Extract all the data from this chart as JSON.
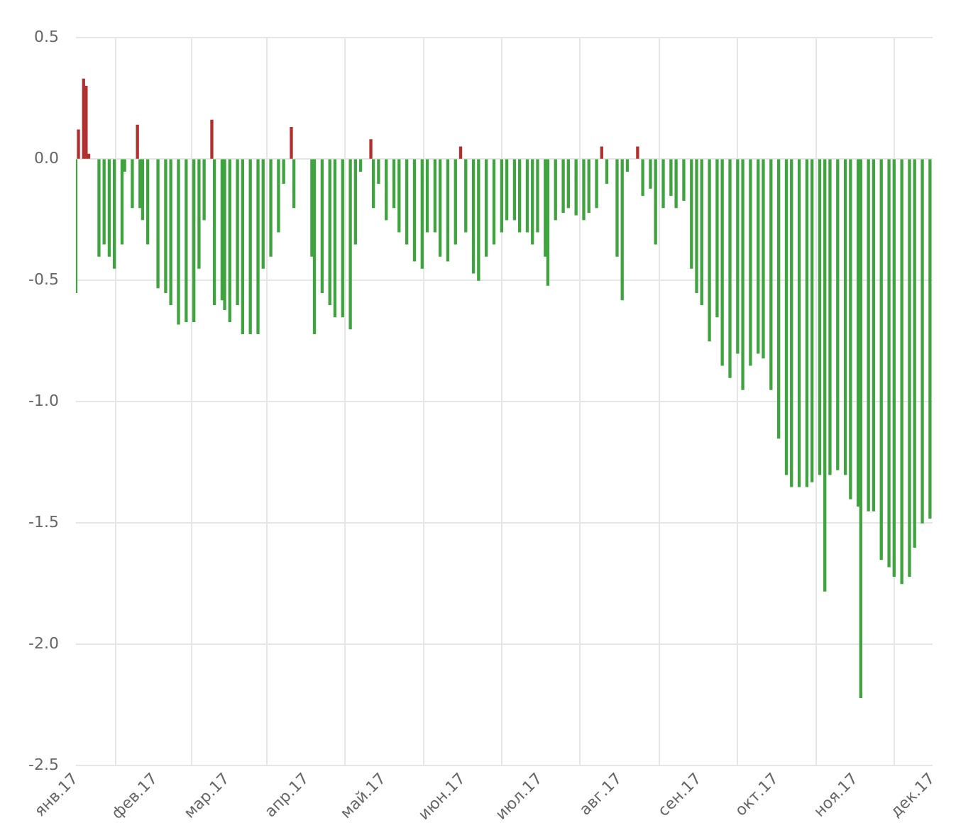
{
  "chart_data": {
    "type": "bar",
    "x": [
      "2017-01-01",
      "2017-01-02",
      "2017-01-04",
      "2017-01-05",
      "2017-01-06",
      "2017-01-10",
      "2017-01-12",
      "2017-01-14",
      "2017-01-16",
      "2017-01-19",
      "2017-01-20",
      "2017-01-23",
      "2017-01-25",
      "2017-01-26",
      "2017-01-27",
      "2017-01-29",
      "2017-02-02",
      "2017-02-05",
      "2017-02-07",
      "2017-02-10",
      "2017-02-13",
      "2017-02-16",
      "2017-02-18",
      "2017-02-20",
      "2017-02-23",
      "2017-02-24",
      "2017-02-27",
      "2017-02-28",
      "2017-03-02",
      "2017-03-05",
      "2017-03-07",
      "2017-03-10",
      "2017-03-13",
      "2017-03-15",
      "2017-03-18",
      "2017-03-21",
      "2017-03-23",
      "2017-03-26",
      "2017-03-27",
      "2017-04-03",
      "2017-04-04",
      "2017-04-07",
      "2017-04-10",
      "2017-04-12",
      "2017-04-15",
      "2017-04-18",
      "2017-04-20",
      "2017-04-22",
      "2017-04-26",
      "2017-04-27",
      "2017-04-29",
      "2017-05-02",
      "2017-05-05",
      "2017-05-07",
      "2017-05-10",
      "2017-05-13",
      "2017-05-16",
      "2017-05-18",
      "2017-05-21",
      "2017-05-23",
      "2017-05-26",
      "2017-05-29",
      "2017-05-31",
      "2017-06-02",
      "2017-06-05",
      "2017-06-07",
      "2017-06-10",
      "2017-06-13",
      "2017-06-16",
      "2017-06-18",
      "2017-06-21",
      "2017-06-23",
      "2017-06-26",
      "2017-06-28",
      "2017-06-30",
      "2017-07-03",
      "2017-07-04",
      "2017-07-07",
      "2017-07-10",
      "2017-07-12",
      "2017-07-15",
      "2017-07-18",
      "2017-07-20",
      "2017-07-23",
      "2017-07-25",
      "2017-07-27",
      "2017-07-31",
      "2017-08-02",
      "2017-08-04",
      "2017-08-08",
      "2017-08-10",
      "2017-08-13",
      "2017-08-15",
      "2017-08-18",
      "2017-08-21",
      "2017-08-23",
      "2017-08-26",
      "2017-08-29",
      "2017-08-31",
      "2017-09-02",
      "2017-09-05",
      "2017-09-08",
      "2017-09-10",
      "2017-09-13",
      "2017-09-16",
      "2017-09-18",
      "2017-09-21",
      "2017-09-24",
      "2017-09-26",
      "2017-09-29",
      "2017-10-02",
      "2017-10-05",
      "2017-10-07",
      "2017-10-10",
      "2017-10-13",
      "2017-10-15",
      "2017-10-18",
      "2017-10-20",
      "2017-10-22",
      "2017-10-25",
      "2017-10-28",
      "2017-10-30",
      "2017-11-02",
      "2017-11-03",
      "2017-11-06",
      "2017-11-08",
      "2017-11-11",
      "2017-11-14",
      "2017-11-16",
      "2017-11-19",
      "2017-11-22",
      "2017-11-24",
      "2017-11-27",
      "2017-11-30"
    ],
    "values": [
      -0.55,
      0.12,
      0.33,
      0.3,
      0.02,
      -0.4,
      -0.35,
      -0.4,
      -0.45,
      -0.35,
      -0.05,
      -0.2,
      0.14,
      -0.2,
      -0.25,
      -0.35,
      -0.53,
      -0.55,
      -0.6,
      -0.68,
      -0.67,
      -0.67,
      -0.45,
      -0.25,
      0.16,
      -0.6,
      -0.58,
      -0.62,
      -0.67,
      -0.6,
      -0.72,
      -0.72,
      -0.72,
      -0.45,
      -0.4,
      -0.3,
      -0.1,
      0.13,
      -0.2,
      -0.4,
      -0.72,
      -0.55,
      -0.6,
      -0.65,
      -0.65,
      -0.7,
      -0.35,
      -0.05,
      0.08,
      -0.2,
      -0.1,
      -0.25,
      -0.2,
      -0.3,
      -0.35,
      -0.42,
      -0.45,
      -0.3,
      -0.3,
      -0.4,
      -0.42,
      -0.35,
      0.05,
      -0.3,
      -0.47,
      -0.5,
      -0.4,
      -0.35,
      -0.3,
      -0.25,
      -0.25,
      -0.3,
      -0.3,
      -0.35,
      -0.3,
      -0.4,
      -0.52,
      -0.25,
      -0.22,
      -0.2,
      -0.23,
      -0.25,
      -0.22,
      -0.2,
      0.05,
      -0.1,
      -0.4,
      -0.58,
      -0.05,
      0.05,
      -0.15,
      -0.12,
      -0.35,
      -0.2,
      -0.15,
      -0.2,
      -0.17,
      -0.45,
      -0.55,
      -0.6,
      -0.75,
      -0.65,
      -0.85,
      -0.9,
      -0.8,
      -0.95,
      -0.85,
      -0.8,
      -0.82,
      -0.95,
      -1.15,
      -1.3,
      -1.35,
      -1.35,
      -1.35,
      -1.33,
      -1.3,
      -1.78,
      -1.3,
      -1.28,
      -1.3,
      -1.4,
      -1.43,
      -2.22,
      -1.45,
      -1.45,
      -1.65,
      -1.68,
      -1.72,
      -1.75,
      -1.72,
      -1.6,
      -1.5,
      -1.48
    ],
    "colors": [
      "#3fa33f",
      "#b03030",
      "#b03030",
      "#b03030",
      "#b03030",
      "#3fa33f",
      "#3fa33f",
      "#3fa33f",
      "#3fa33f",
      "#3fa33f",
      "#3fa33f",
      "#3fa33f",
      "#b03030",
      "#3fa33f",
      "#3fa33f",
      "#3fa33f",
      "#3fa33f",
      "#3fa33f",
      "#3fa33f",
      "#3fa33f",
      "#3fa33f",
      "#3fa33f",
      "#3fa33f",
      "#3fa33f",
      "#b03030",
      "#3fa33f",
      "#3fa33f",
      "#3fa33f",
      "#3fa33f",
      "#3fa33f",
      "#3fa33f",
      "#3fa33f",
      "#3fa33f",
      "#3fa33f",
      "#3fa33f",
      "#3fa33f",
      "#3fa33f",
      "#b03030",
      "#3fa33f",
      "#3fa33f",
      "#3fa33f",
      "#3fa33f",
      "#3fa33f",
      "#3fa33f",
      "#3fa33f",
      "#3fa33f",
      "#3fa33f",
      "#3fa33f",
      "#b03030",
      "#3fa33f",
      "#3fa33f",
      "#3fa33f",
      "#3fa33f",
      "#3fa33f",
      "#3fa33f",
      "#3fa33f",
      "#3fa33f",
      "#3fa33f",
      "#3fa33f",
      "#3fa33f",
      "#3fa33f",
      "#3fa33f",
      "#b03030",
      "#3fa33f",
      "#3fa33f",
      "#3fa33f",
      "#3fa33f",
      "#3fa33f",
      "#3fa33f",
      "#3fa33f",
      "#3fa33f",
      "#3fa33f",
      "#3fa33f",
      "#3fa33f",
      "#3fa33f",
      "#3fa33f",
      "#3fa33f",
      "#3fa33f",
      "#3fa33f",
      "#3fa33f",
      "#3fa33f",
      "#3fa33f",
      "#3fa33f",
      "#3fa33f",
      "#b03030",
      "#3fa33f",
      "#3fa33f",
      "#3fa33f",
      "#3fa33f",
      "#b03030",
      "#3fa33f",
      "#3fa33f",
      "#3fa33f",
      "#3fa33f",
      "#3fa33f",
      "#3fa33f",
      "#3fa33f",
      "#3fa33f",
      "#3fa33f",
      "#3fa33f",
      "#3fa33f",
      "#3fa33f",
      "#3fa33f",
      "#3fa33f",
      "#3fa33f",
      "#3fa33f",
      "#3fa33f",
      "#3fa33f",
      "#3fa33f",
      "#3fa33f",
      "#3fa33f",
      "#3fa33f",
      "#3fa33f",
      "#3fa33f",
      "#3fa33f",
      "#3fa33f",
      "#3fa33f",
      "#3fa33f",
      "#3fa33f",
      "#3fa33f",
      "#3fa33f",
      "#3fa33f",
      "#3fa33f",
      "#3fa33f",
      "#3fa33f",
      "#3fa33f",
      "#3fa33f",
      "#3fa33f",
      "#3fa33f",
      "#3fa33f",
      "#3fa33f",
      "#3fa33f",
      "#3fa33f",
      "#3fa33f"
    ],
    "xlim": [
      "2017-01-01",
      "2017-12-01"
    ],
    "xticks": [
      {
        "value": "2017-01-01",
        "label": "янв.17"
      },
      {
        "value": "2017-02-01",
        "label": "фев.17"
      },
      {
        "value": "2017-03-01",
        "label": "мар.17"
      },
      {
        "value": "2017-04-01",
        "label": "апр.17"
      },
      {
        "value": "2017-05-01",
        "label": "май.17"
      },
      {
        "value": "2017-06-01",
        "label": "июн.17"
      },
      {
        "value": "2017-07-01",
        "label": "июл.17"
      },
      {
        "value": "2017-08-01",
        "label": "авг.17"
      },
      {
        "value": "2017-09-01",
        "label": "сен.17"
      },
      {
        "value": "2017-10-01",
        "label": "окт.17"
      },
      {
        "value": "2017-11-01",
        "label": "ноя.17"
      },
      {
        "value": "2017-12-01",
        "label": "дек.17"
      }
    ],
    "ylim": [
      -2.5,
      0.5
    ],
    "yticks": [
      {
        "value": 0.5,
        "label": "0.5"
      },
      {
        "value": 0,
        "label": "0.0"
      },
      {
        "value": -0.5,
        "label": "-0.5"
      },
      {
        "value": -1,
        "label": "-1.0"
      },
      {
        "value": -1.5,
        "label": "-1.5"
      },
      {
        "value": -2,
        "label": "-2.0"
      },
      {
        "value": -2.5,
        "label": "-2.5"
      }
    ],
    "grid": true
  }
}
